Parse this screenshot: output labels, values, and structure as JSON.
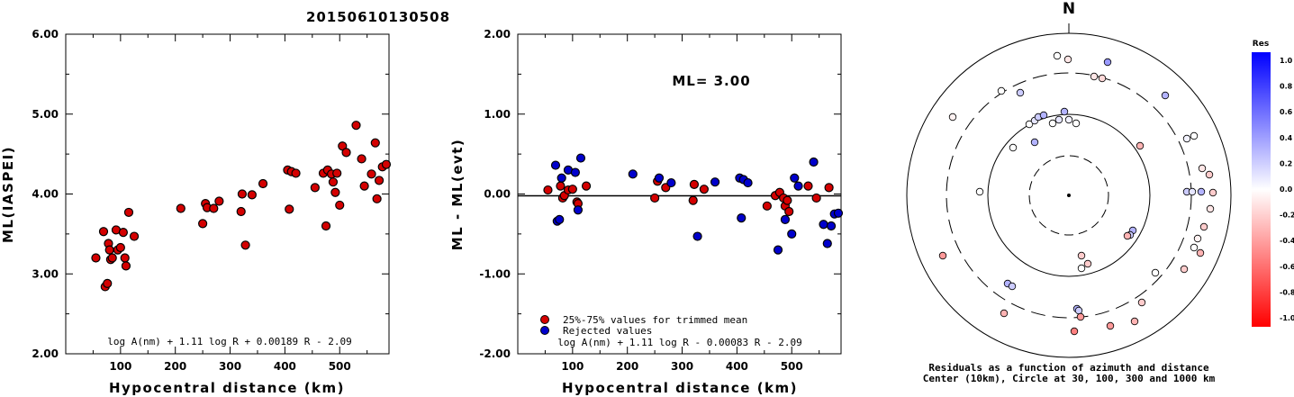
{
  "title": "20150610130508",
  "chart_data": [
    {
      "type": "scatter",
      "xlabel": "Hypocentral distance (km)",
      "ylabel": "ML(IASPEI)",
      "xlim": [
        0,
        590
      ],
      "ylim": [
        2.0,
        6.0
      ],
      "xticks": [
        "100",
        "200",
        "300",
        "400",
        "500"
      ],
      "yticks": [
        "2.00",
        "3.00",
        "4.00",
        "5.00",
        "6.00"
      ],
      "formula": "log A(nm) + 1.11 log R + 0.00189 R - 2.09",
      "series": [
        {
          "color": "#d40000",
          "points": [
            [
              55,
              3.2
            ],
            [
              69,
              3.53
            ],
            [
              72,
              2.84
            ],
            [
              76,
              2.88
            ],
            [
              78,
              3.38
            ],
            [
              80,
              3.3
            ],
            [
              82,
              3.18
            ],
            [
              85,
              3.2
            ],
            [
              92,
              3.55
            ],
            [
              95,
              3.3
            ],
            [
              100,
              3.33
            ],
            [
              105,
              3.52
            ],
            [
              108,
              3.2
            ],
            [
              110,
              3.1
            ],
            [
              115,
              3.77
            ],
            [
              125,
              3.47
            ],
            [
              210,
              3.82
            ],
            [
              250,
              3.63
            ],
            [
              255,
              3.88
            ],
            [
              258,
              3.83
            ],
            [
              270,
              3.82
            ],
            [
              280,
              3.91
            ],
            [
              320,
              3.78
            ],
            [
              322,
              4.0
            ],
            [
              328,
              3.36
            ],
            [
              340,
              3.99
            ],
            [
              360,
              4.13
            ],
            [
              405,
              4.3
            ],
            [
              408,
              3.81
            ],
            [
              412,
              4.28
            ],
            [
              420,
              4.26
            ],
            [
              455,
              4.08
            ],
            [
              470,
              4.26
            ],
            [
              475,
              3.6
            ],
            [
              478,
              4.3
            ],
            [
              485,
              4.25
            ],
            [
              488,
              4.15
            ],
            [
              492,
              4.02
            ],
            [
              495,
              4.26
            ],
            [
              500,
              3.86
            ],
            [
              505,
              4.6
            ],
            [
              512,
              4.52
            ],
            [
              530,
              4.86
            ],
            [
              540,
              4.44
            ],
            [
              545,
              4.1
            ],
            [
              558,
              4.25
            ],
            [
              565,
              4.64
            ],
            [
              568,
              3.94
            ],
            [
              572,
              4.17
            ],
            [
              578,
              4.34
            ],
            [
              585,
              4.37
            ],
            [
              592,
              4.45
            ]
          ]
        }
      ]
    },
    {
      "type": "scatter",
      "xlabel": "Hypocentral distance (km)",
      "ylabel": "ML - ML(evt)",
      "xlim": [
        0,
        590
      ],
      "ylim": [
        -2.0,
        2.0
      ],
      "xticks": [
        "100",
        "200",
        "300",
        "400",
        "500"
      ],
      "yticks": [
        "-2.00",
        "-1.00",
        "0.00",
        "1.00",
        "2.00"
      ],
      "annotation": "ML= 3.00",
      "formula": "log A(nm) + 1.11 log R - 0.00083 R - 2.09",
      "series": [
        {
          "name": "25%-75% values for trimmed mean",
          "color": "#d40000",
          "points": [
            [
              55,
              0.05
            ],
            [
              78,
              0.1
            ],
            [
              82,
              -0.05
            ],
            [
              85,
              -0.02
            ],
            [
              92,
              0.05
            ],
            [
              100,
              0.06
            ],
            [
              108,
              -0.1
            ],
            [
              110,
              -0.12
            ],
            [
              125,
              0.1
            ],
            [
              250,
              -0.05
            ],
            [
              255,
              0.16
            ],
            [
              270,
              0.08
            ],
            [
              320,
              -0.08
            ],
            [
              322,
              0.12
            ],
            [
              340,
              0.06
            ],
            [
              455,
              -0.15
            ],
            [
              470,
              -0.02
            ],
            [
              478,
              0.02
            ],
            [
              485,
              -0.05
            ],
            [
              488,
              -0.15
            ],
            [
              492,
              -0.08
            ],
            [
              495,
              -0.22
            ],
            [
              530,
              0.1
            ],
            [
              545,
              -0.05
            ],
            [
              568,
              0.08
            ]
          ]
        },
        {
          "name": "Rejected values",
          "color": "#0000cc",
          "points": [
            [
              69,
              0.36
            ],
            [
              72,
              -0.34
            ],
            [
              76,
              -0.32
            ],
            [
              80,
              0.2
            ],
            [
              92,
              0.3
            ],
            [
              105,
              0.27
            ],
            [
              110,
              -0.2
            ],
            [
              115,
              0.45
            ],
            [
              210,
              0.25
            ],
            [
              258,
              0.2
            ],
            [
              280,
              0.14
            ],
            [
              328,
              -0.53
            ],
            [
              360,
              0.15
            ],
            [
              405,
              0.2
            ],
            [
              408,
              -0.3
            ],
            [
              412,
              0.18
            ],
            [
              420,
              0.14
            ],
            [
              475,
              -0.7
            ],
            [
              488,
              -0.32
            ],
            [
              500,
              -0.5
            ],
            [
              505,
              0.2
            ],
            [
              512,
              0.1
            ],
            [
              540,
              0.4
            ],
            [
              558,
              -0.38
            ],
            [
              565,
              -0.62
            ],
            [
              572,
              -0.4
            ],
            [
              578,
              -0.25
            ],
            [
              585,
              -0.24
            ]
          ]
        }
      ]
    },
    {
      "type": "polar-scatter",
      "north_label": "N",
      "caption_line1": "Residuals as a function of azimuth and distance",
      "caption_line2": "Center (10km), Circle at 30, 100, 300 and 1000 km",
      "colorbar_title": "Res",
      "colorbar_ticks": [
        "1.0",
        "0.8",
        "0.6",
        "0.4",
        "0.2",
        "0.0",
        "-0.2",
        "-0.4",
        "-0.6",
        "-0.8",
        "-1.0"
      ],
      "points": [
        [
          1174,
          62,
          0.0
        ],
        [
          1186,
          66,
          -0.1
        ],
        [
          1215,
          85,
          -0.1
        ],
        [
          1224,
          87,
          -0.15
        ],
        [
          1230,
          69,
          0.4
        ],
        [
          1112,
          101,
          0.0
        ],
        [
          1133,
          103,
          0.2
        ],
        [
          1294,
          106,
          0.3
        ],
        [
          1058,
          130,
          -0.05
        ],
        [
          1143,
          138,
          0.0
        ],
        [
          1149,
          134,
          0.1
        ],
        [
          1153,
          130,
          0.2
        ],
        [
          1159,
          128,
          0.3
        ],
        [
          1169,
          137,
          0.0
        ],
        [
          1176,
          133,
          0.1
        ],
        [
          1182,
          124,
          0.3
        ],
        [
          1187,
          133,
          0.05
        ],
        [
          1195,
          137,
          0.0
        ],
        [
          1149,
          158,
          0.3
        ],
        [
          1125,
          164,
          0.0
        ],
        [
          1266,
          162,
          -0.3
        ],
        [
          1318,
          154,
          0.05
        ],
        [
          1326,
          151,
          0.0
        ],
        [
          1335,
          187,
          -0.1
        ],
        [
          1343,
          194,
          -0.2
        ],
        [
          1088,
          213,
          0.0
        ],
        [
          1318,
          213,
          0.2
        ],
        [
          1324,
          213,
          0.1
        ],
        [
          1334,
          213,
          0.3
        ],
        [
          1347,
          214,
          -0.2
        ],
        [
          1344,
          232,
          -0.1
        ],
        [
          1337,
          252,
          -0.2
        ],
        [
          1330,
          265,
          -0.05
        ],
        [
          1326,
          275,
          0.0
        ],
        [
          1333,
          281,
          -0.3
        ],
        [
          1315,
          299,
          -0.2
        ],
        [
          1283,
          303,
          0.0
        ],
        [
          1258,
          256,
          0.3
        ],
        [
          1255,
          261,
          0.2
        ],
        [
          1252,
          262,
          -0.3
        ],
        [
          1201,
          284,
          -0.2
        ],
        [
          1208,
          293,
          -0.2
        ],
        [
          1201,
          298,
          0.0
        ],
        [
          1047,
          284,
          -0.4
        ],
        [
          1119,
          315,
          0.3
        ],
        [
          1124,
          318,
          0.2
        ],
        [
          1268,
          336,
          -0.2
        ],
        [
          1115,
          348,
          -0.3
        ],
        [
          1196,
          343,
          0.3
        ],
        [
          1198,
          345,
          0.2
        ],
        [
          1200,
          352,
          -0.4
        ],
        [
          1193,
          368,
          -0.5
        ],
        [
          1233,
          362,
          -0.4
        ],
        [
          1260,
          357,
          -0.3
        ]
      ]
    }
  ]
}
